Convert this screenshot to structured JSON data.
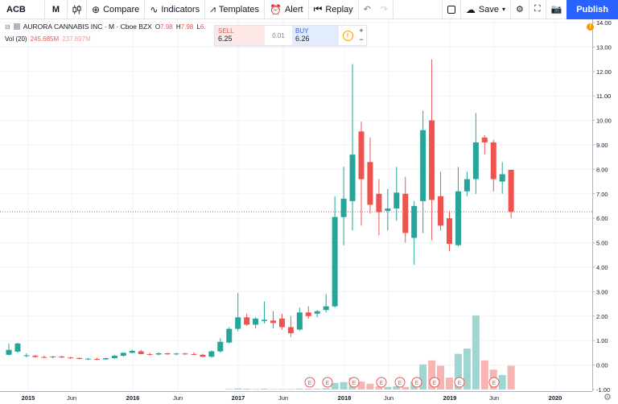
{
  "toolbar": {
    "symbol": "ACB",
    "interval": "M",
    "compare": "Compare",
    "indicators": "Indicators",
    "templates": "Templates",
    "alert": "Alert",
    "replay": "Replay",
    "save": "Save",
    "publish": "Publish"
  },
  "legend": {
    "title": "AURORA CANNABIS INC · M · Cboe BZX",
    "o_label": "O",
    "o_value": "7.98",
    "h_label": "H",
    "h_value": "7.98",
    "l_label": "L",
    "l_value": "6.",
    "vol_label": "Vol (20)",
    "vol_value1": "245.685M",
    "vol_value2": "237.897M"
  },
  "trade": {
    "sell_label": "SELL",
    "sell_price": "6.25",
    "spread": "0.01",
    "buy_label": "BUY",
    "buy_price": "6.26"
  },
  "colors": {
    "up": "#26a69a",
    "down": "#ef5350",
    "up_vol": "#9fd6d1",
    "down_vol": "#f6b4b2",
    "accent": "#2962ff"
  },
  "chart_data": {
    "type": "candlestick",
    "x_ticks": [
      "2015",
      "Jun",
      "2016",
      "Jun",
      "2017",
      "Jun",
      "2018",
      "Jun",
      "2019",
      "Jun",
      "2020"
    ],
    "y_ticks": [
      "14.00",
      "13.00",
      "12.00",
      "11.00",
      "10.00",
      "9.00",
      "8.00",
      "7.00",
      "6.00",
      "5.00",
      "4.00",
      "3.00",
      "2.00",
      "1.00",
      "0.00",
      "-1.00"
    ],
    "ylim": [
      -1,
      14
    ],
    "last_price": "6.26",
    "last_price_value": 6.26,
    "ohlc": [
      {
        "o": 0.42,
        "h": 0.88,
        "l": 0.38,
        "c": 0.62
      },
      {
        "o": 0.55,
        "h": 0.92,
        "l": 0.5,
        "c": 0.88
      },
      {
        "o": 0.4,
        "h": 0.48,
        "l": 0.32,
        "c": 0.4
      },
      {
        "o": 0.38,
        "h": 0.42,
        "l": 0.3,
        "c": 0.33
      },
      {
        "o": 0.33,
        "h": 0.38,
        "l": 0.28,
        "c": 0.32
      },
      {
        "o": 0.32,
        "h": 0.37,
        "l": 0.28,
        "c": 0.35
      },
      {
        "o": 0.35,
        "h": 0.39,
        "l": 0.29,
        "c": 0.31
      },
      {
        "o": 0.31,
        "h": 0.34,
        "l": 0.25,
        "c": 0.29
      },
      {
        "o": 0.29,
        "h": 0.31,
        "l": 0.23,
        "c": 0.25
      },
      {
        "o": 0.25,
        "h": 0.29,
        "l": 0.21,
        "c": 0.26
      },
      {
        "o": 0.25,
        "h": 0.3,
        "l": 0.2,
        "c": 0.23
      },
      {
        "o": 0.23,
        "h": 0.3,
        "l": 0.22,
        "c": 0.28
      },
      {
        "o": 0.28,
        "h": 0.42,
        "l": 0.26,
        "c": 0.38
      },
      {
        "o": 0.38,
        "h": 0.52,
        "l": 0.34,
        "c": 0.5
      },
      {
        "o": 0.5,
        "h": 0.62,
        "l": 0.48,
        "c": 0.58
      },
      {
        "o": 0.56,
        "h": 0.62,
        "l": 0.44,
        "c": 0.45
      },
      {
        "o": 0.45,
        "h": 0.5,
        "l": 0.38,
        "c": 0.43
      },
      {
        "o": 0.43,
        "h": 0.52,
        "l": 0.4,
        "c": 0.48
      },
      {
        "o": 0.48,
        "h": 0.51,
        "l": 0.42,
        "c": 0.44
      },
      {
        "o": 0.44,
        "h": 0.5,
        "l": 0.4,
        "c": 0.47
      },
      {
        "o": 0.47,
        "h": 0.5,
        "l": 0.41,
        "c": 0.45
      },
      {
        "o": 0.45,
        "h": 0.52,
        "l": 0.4,
        "c": 0.42
      },
      {
        "o": 0.42,
        "h": 0.46,
        "l": 0.32,
        "c": 0.34
      },
      {
        "o": 0.34,
        "h": 0.6,
        "l": 0.3,
        "c": 0.56
      },
      {
        "o": 0.56,
        "h": 1.1,
        "l": 0.5,
        "c": 0.95
      },
      {
        "o": 0.92,
        "h": 1.55,
        "l": 0.88,
        "c": 1.48
      },
      {
        "o": 1.48,
        "h": 2.95,
        "l": 1.38,
        "c": 1.95
      },
      {
        "o": 1.95,
        "h": 2.1,
        "l": 1.6,
        "c": 1.65
      },
      {
        "o": 1.65,
        "h": 1.95,
        "l": 1.5,
        "c": 1.9
      },
      {
        "o": 1.8,
        "h": 2.6,
        "l": 1.7,
        "c": 1.85
      },
      {
        "o": 1.82,
        "h": 2.2,
        "l": 1.5,
        "c": 1.72
      },
      {
        "o": 1.9,
        "h": 2.1,
        "l": 1.45,
        "c": 1.55
      },
      {
        "o": 1.55,
        "h": 2.0,
        "l": 1.15,
        "c": 1.3
      },
      {
        "o": 1.45,
        "h": 2.35,
        "l": 1.4,
        "c": 2.15
      },
      {
        "o": 2.15,
        "h": 2.4,
        "l": 1.9,
        "c": 2.0
      },
      {
        "o": 2.1,
        "h": 2.25,
        "l": 1.95,
        "c": 2.2
      },
      {
        "o": 2.25,
        "h": 2.9,
        "l": 2.15,
        "c": 2.4
      },
      {
        "o": 2.4,
        "h": 6.9,
        "l": 2.35,
        "c": 6.05
      },
      {
        "o": 6.05,
        "h": 8.1,
        "l": 4.9,
        "c": 6.8
      },
      {
        "o": 6.7,
        "h": 12.3,
        "l": 5.5,
        "c": 8.6
      },
      {
        "o": 9.55,
        "h": 9.95,
        "l": 5.7,
        "c": 7.6
      },
      {
        "o": 8.3,
        "h": 9.3,
        "l": 6.2,
        "c": 6.55
      },
      {
        "o": 7.0,
        "h": 7.6,
        "l": 5.3,
        "c": 6.25
      },
      {
        "o": 6.3,
        "h": 7.2,
        "l": 5.5,
        "c": 6.4
      },
      {
        "o": 6.4,
        "h": 8.1,
        "l": 5.9,
        "c": 7.05
      },
      {
        "o": 7.0,
        "h": 7.7,
        "l": 5.0,
        "c": 5.4
      },
      {
        "o": 5.2,
        "h": 6.7,
        "l": 4.1,
        "c": 6.5
      },
      {
        "o": 6.7,
        "h": 10.4,
        "l": 5.4,
        "c": 9.6
      },
      {
        "o": 10.0,
        "h": 12.5,
        "l": 5.1,
        "c": 6.75
      },
      {
        "o": 6.9,
        "h": 7.9,
        "l": 5.5,
        "c": 5.7
      },
      {
        "o": 6.0,
        "h": 6.3,
        "l": 4.65,
        "c": 4.95
      },
      {
        "o": 4.9,
        "h": 8.1,
        "l": 4.85,
        "c": 7.1
      },
      {
        "o": 7.1,
        "h": 7.9,
        "l": 6.9,
        "c": 7.6
      },
      {
        "o": 7.6,
        "h": 10.3,
        "l": 7.0,
        "c": 9.1
      },
      {
        "o": 9.3,
        "h": 9.4,
        "l": 8.6,
        "c": 9.1
      },
      {
        "o": 9.1,
        "h": 9.2,
        "l": 7.1,
        "c": 7.6
      },
      {
        "o": 7.5,
        "h": 8.3,
        "l": 7.0,
        "c": 7.8
      },
      {
        "o": 7.98,
        "h": 7.98,
        "l": 6.0,
        "c": 6.26
      }
    ],
    "volume": [
      0.0,
      0.0,
      0.0,
      0.0,
      0.0,
      0.0,
      0.0,
      0.0,
      0.0,
      0.0,
      0.0,
      0.0,
      0.0,
      0.0,
      0.0,
      0.0,
      0.0,
      0.0,
      0.0,
      0.0,
      0.0,
      0.0,
      0.0,
      0.0,
      0.0,
      0.02,
      0.04,
      0.03,
      0.02,
      0.03,
      0.02,
      0.02,
      0.02,
      0.03,
      0.03,
      0.03,
      0.05,
      0.25,
      0.28,
      0.45,
      0.3,
      0.22,
      0.12,
      0.1,
      0.12,
      0.1,
      0.3,
      0.95,
      1.1,
      0.9,
      0.45,
      1.35,
      1.55,
      2.8,
      1.1,
      0.75,
      0.55,
      0.9
    ],
    "earnings_markers": [
      "E",
      "E",
      "E",
      "E",
      "E",
      "E",
      "E",
      "E",
      "E"
    ]
  }
}
